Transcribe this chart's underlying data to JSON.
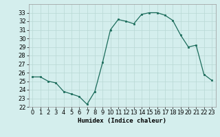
{
  "x": [
    0,
    1,
    2,
    3,
    4,
    5,
    6,
    7,
    8,
    9,
    10,
    11,
    12,
    13,
    14,
    15,
    16,
    17,
    18,
    19,
    20,
    21,
    22,
    23
  ],
  "y": [
    25.5,
    25.5,
    25.0,
    24.8,
    23.8,
    23.5,
    23.2,
    22.3,
    23.8,
    27.2,
    31.0,
    32.2,
    32.0,
    31.7,
    32.8,
    33.0,
    33.0,
    32.7,
    32.1,
    30.4,
    29.0,
    29.2,
    25.8,
    25.1
  ],
  "xlabel": "Humidex (Indice chaleur)",
  "ylim": [
    22,
    34
  ],
  "xlim": [
    -0.5,
    23.5
  ],
  "yticks": [
    22,
    23,
    24,
    25,
    26,
    27,
    28,
    29,
    30,
    31,
    32,
    33
  ],
  "xticks": [
    0,
    1,
    2,
    3,
    4,
    5,
    6,
    7,
    8,
    9,
    10,
    11,
    12,
    13,
    14,
    15,
    16,
    17,
    18,
    19,
    20,
    21,
    22,
    23
  ],
  "line_color": "#1a6b5a",
  "marker_color": "#1a6b5a",
  "bg_color": "#d4eeed",
  "grid_color": "#b8d8d4",
  "label_fontsize": 6.5,
  "tick_fontsize": 6.0
}
